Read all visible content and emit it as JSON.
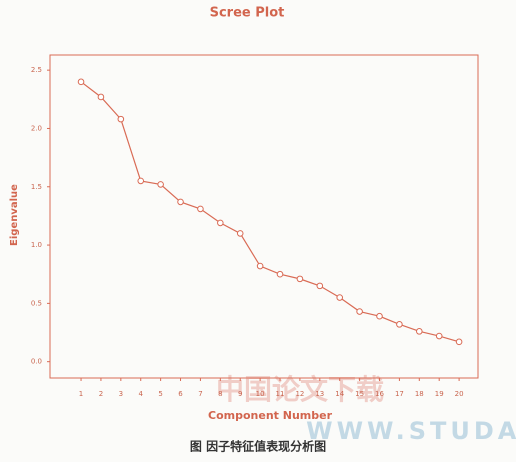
{
  "chart_data": {
    "type": "line",
    "title": "Scree Plot",
    "x_label": "Component Number",
    "y_label": "Eigenvalue",
    "x": [
      1,
      2,
      3,
      4,
      5,
      6,
      7,
      8,
      9,
      10,
      11,
      12,
      13,
      14,
      15,
      16,
      17,
      18,
      19,
      20
    ],
    "values": [
      2.4,
      2.27,
      2.08,
      1.55,
      1.52,
      1.37,
      1.31,
      1.19,
      1.1,
      0.82,
      0.75,
      0.71,
      0.65,
      0.55,
      0.43,
      0.39,
      0.32,
      0.26,
      0.22,
      0.17
    ],
    "color": "#d96b55",
    "xlim": [
      -0.56,
      20.95
    ],
    "xticks": [
      1,
      2,
      3,
      4,
      5,
      6,
      7,
      8,
      9,
      10,
      11,
      12,
      13,
      14,
      15,
      16,
      17,
      18,
      19,
      20
    ],
    "ylim": [
      -0.14,
      2.63
    ],
    "yticks": [
      {
        "value": 0,
        "label": "0.0"
      },
      0.5,
      {
        "value": 1,
        "label": "1.0"
      },
      1.5,
      {
        "value": 2,
        "label": "2.0"
      },
      2.5
    ]
  },
  "caption": "图   因子特征值表现分析图",
  "watermark": [
    "中国论文下载",
    "WWW.STUDA."
  ]
}
